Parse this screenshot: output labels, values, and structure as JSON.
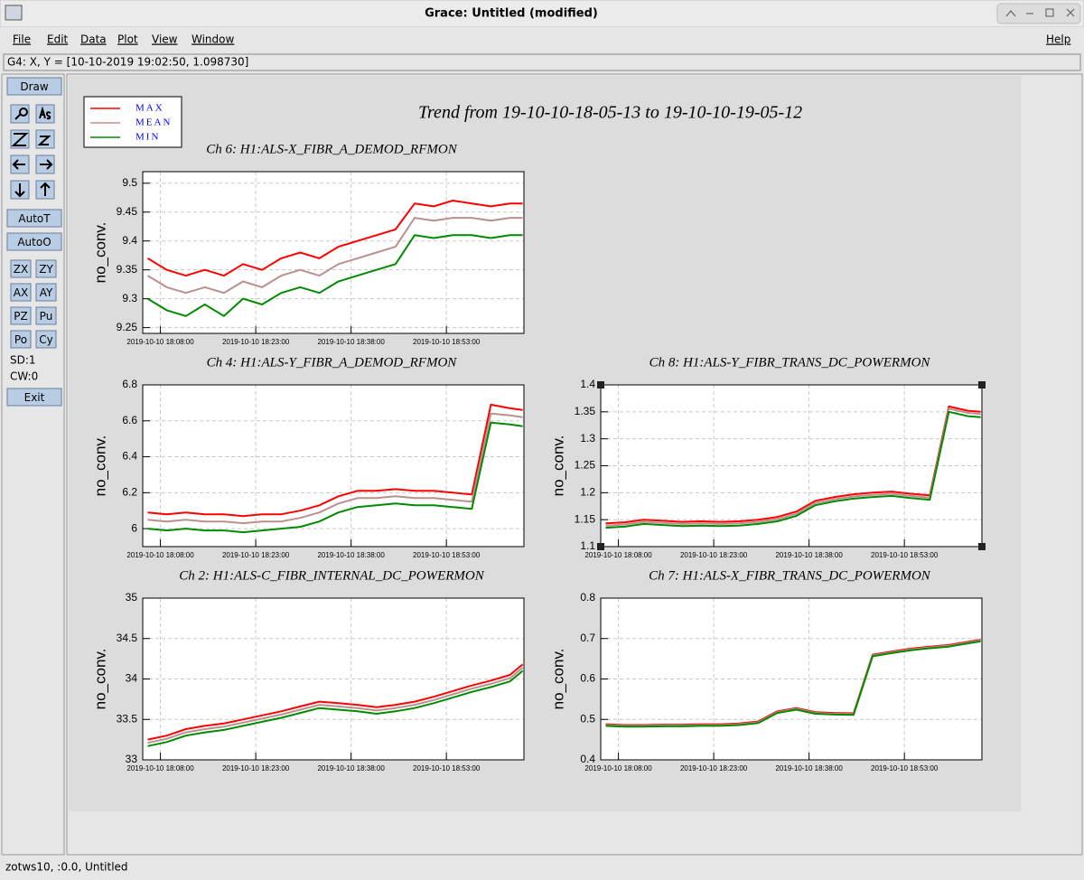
{
  "window": {
    "title": "Grace: Untitled (modified)"
  },
  "menu": [
    "File",
    "Edit",
    "Data",
    "Plot",
    "View",
    "Window"
  ],
  "help": "Help",
  "locator": "G4: X, Y = [10-10-2019 19:02:50, 1.098730]",
  "toolbar": {
    "draw": "Draw",
    "auto": [
      "AutoT",
      "AutoO"
    ],
    "grid": [
      "ZX",
      "ZY",
      "AX",
      "AY",
      "PZ",
      "Pu",
      "Po",
      "Cy"
    ],
    "info": [
      "SD:1",
      "CW:0"
    ],
    "exit": "Exit"
  },
  "status": "zotws10, :0.0, Untitled",
  "title": "Trend from 19-10-10-18-05-13 to 19-10-10-19-05-12",
  "legend": [
    {
      "name": "MAX",
      "color": "#ff0000"
    },
    {
      "name": "MEAN",
      "color": "#bc8f8f"
    },
    {
      "name": "MIN",
      "color": "#008b00"
    }
  ],
  "chart_data": [
    {
      "type": "line",
      "title": "Ch 6: H1:ALS-X_FIBR_A_DEMOD_RFMON",
      "ylabel": "no_conv.",
      "grid": true,
      "x": [
        "2019-10-10 18:06:00",
        "2019-10-10 18:09:00",
        "2019-10-10 18:12:00",
        "2019-10-10 18:15:00",
        "2019-10-10 18:18:00",
        "2019-10-10 18:21:00",
        "2019-10-10 18:24:00",
        "2019-10-10 18:27:00",
        "2019-10-10 18:30:00",
        "2019-10-10 18:33:00",
        "2019-10-10 18:36:00",
        "2019-10-10 18:39:00",
        "2019-10-10 18:42:00",
        "2019-10-10 18:45:00",
        "2019-10-10 18:48:00",
        "2019-10-10 18:51:00",
        "2019-10-10 18:54:00",
        "2019-10-10 18:57:00",
        "2019-10-10 19:00:00",
        "2019-10-10 19:03:00",
        "2019-10-10 19:05:00"
      ],
      "xlim": [
        "2019-10-10 18:05:13",
        "2019-10-10 19:05:12"
      ],
      "xticks": [
        "2019-10-10 18:08:00",
        "2019-10-10 18:23:00",
        "2019-10-10 18:38:00",
        "2019-10-10 18:53:00"
      ],
      "ylim": [
        9.24,
        9.52
      ],
      "yticks": [
        9.25,
        9.3,
        9.35,
        9.4,
        9.45,
        9.5
      ],
      "series": [
        {
          "values": [
            9.37,
            9.35,
            9.34,
            9.35,
            9.34,
            9.36,
            9.35,
            9.37,
            9.38,
            9.37,
            9.39,
            9.4,
            9.41,
            9.42,
            9.465,
            9.46,
            9.47,
            9.465,
            9.46,
            9.465,
            9.465
          ]
        },
        {
          "values": [
            9.34,
            9.32,
            9.31,
            9.32,
            9.31,
            9.33,
            9.32,
            9.34,
            9.35,
            9.34,
            9.36,
            9.37,
            9.38,
            9.39,
            9.44,
            9.435,
            9.44,
            9.44,
            9.435,
            9.44,
            9.44
          ]
        },
        {
          "values": [
            9.3,
            9.28,
            9.27,
            9.29,
            9.27,
            9.3,
            9.29,
            9.31,
            9.32,
            9.31,
            9.33,
            9.34,
            9.35,
            9.36,
            9.41,
            9.405,
            9.41,
            9.41,
            9.405,
            9.41,
            9.41
          ]
        }
      ]
    },
    {
      "type": "line",
      "title": "Ch 4: H1:ALS-Y_FIBR_A_DEMOD_RFMON",
      "ylabel": "no_conv.",
      "grid": true,
      "x": [
        "2019-10-10 18:06:00",
        "2019-10-10 18:09:00",
        "2019-10-10 18:12:00",
        "2019-10-10 18:15:00",
        "2019-10-10 18:18:00",
        "2019-10-10 18:21:00",
        "2019-10-10 18:24:00",
        "2019-10-10 18:27:00",
        "2019-10-10 18:30:00",
        "2019-10-10 18:33:00",
        "2019-10-10 18:36:00",
        "2019-10-10 18:39:00",
        "2019-10-10 18:42:00",
        "2019-10-10 18:45:00",
        "2019-10-10 18:48:00",
        "2019-10-10 18:51:00",
        "2019-10-10 18:54:00",
        "2019-10-10 18:57:00",
        "2019-10-10 19:00:00",
        "2019-10-10 19:03:00",
        "2019-10-10 19:05:00"
      ],
      "xlim": [
        "2019-10-10 18:05:13",
        "2019-10-10 19:05:12"
      ],
      "xticks": [
        "2019-10-10 18:08:00",
        "2019-10-10 18:23:00",
        "2019-10-10 18:38:00",
        "2019-10-10 18:53:00"
      ],
      "ylim": [
        5.9,
        6.8
      ],
      "yticks": [
        6,
        6.2,
        6.4,
        6.6,
        6.8
      ],
      "series": [
        {
          "values": [
            6.09,
            6.08,
            6.09,
            6.08,
            6.08,
            6.07,
            6.08,
            6.08,
            6.1,
            6.13,
            6.18,
            6.21,
            6.21,
            6.22,
            6.21,
            6.21,
            6.2,
            6.19,
            6.69,
            6.67,
            6.66
          ]
        },
        {
          "values": [
            6.05,
            6.04,
            6.05,
            6.04,
            6.04,
            6.03,
            6.04,
            6.04,
            6.06,
            6.09,
            6.14,
            6.17,
            6.17,
            6.18,
            6.17,
            6.17,
            6.16,
            6.15,
            6.64,
            6.63,
            6.62
          ]
        },
        {
          "values": [
            6.0,
            5.99,
            6.0,
            5.99,
            5.99,
            5.98,
            5.99,
            6.0,
            6.01,
            6.04,
            6.09,
            6.12,
            6.13,
            6.14,
            6.13,
            6.13,
            6.12,
            6.11,
            6.59,
            6.58,
            6.57
          ]
        }
      ]
    },
    {
      "type": "line",
      "title": "Ch 8: H1:ALS-Y_FIBR_TRANS_DC_POWERMON",
      "ylabel": "no_conv.",
      "grid": true,
      "x": [
        "2019-10-10 18:06:00",
        "2019-10-10 18:09:00",
        "2019-10-10 18:12:00",
        "2019-10-10 18:15:00",
        "2019-10-10 18:18:00",
        "2019-10-10 18:21:00",
        "2019-10-10 18:24:00",
        "2019-10-10 18:27:00",
        "2019-10-10 18:30:00",
        "2019-10-10 18:33:00",
        "2019-10-10 18:36:00",
        "2019-10-10 18:39:00",
        "2019-10-10 18:42:00",
        "2019-10-10 18:45:00",
        "2019-10-10 18:48:00",
        "2019-10-10 18:51:00",
        "2019-10-10 18:54:00",
        "2019-10-10 18:57:00",
        "2019-10-10 19:00:00",
        "2019-10-10 19:03:00",
        "2019-10-10 19:05:00"
      ],
      "xlim": [
        "2019-10-10 18:05:13",
        "2019-10-10 19:05:12"
      ],
      "xticks": [
        "2019-10-10 18:08:00",
        "2019-10-10 18:23:00",
        "2019-10-10 18:38:00",
        "2019-10-10 18:53:00"
      ],
      "ylim": [
        1.1,
        1.4
      ],
      "yticks": [
        1.1,
        1.15,
        1.2,
        1.25,
        1.3,
        1.35,
        1.4
      ],
      "series": [
        {
          "values": [
            1.143,
            1.145,
            1.15,
            1.148,
            1.146,
            1.147,
            1.146,
            1.147,
            1.15,
            1.155,
            1.165,
            1.185,
            1.192,
            1.197,
            1.2,
            1.202,
            1.198,
            1.195,
            1.36,
            1.352,
            1.35
          ]
        },
        {
          "values": [
            1.139,
            1.141,
            1.146,
            1.144,
            1.142,
            1.143,
            1.142,
            1.143,
            1.146,
            1.151,
            1.161,
            1.181,
            1.188,
            1.193,
            1.196,
            1.198,
            1.194,
            1.191,
            1.356,
            1.348,
            1.346
          ]
        },
        {
          "values": [
            1.135,
            1.137,
            1.142,
            1.14,
            1.138,
            1.139,
            1.138,
            1.139,
            1.142,
            1.147,
            1.157,
            1.177,
            1.184,
            1.189,
            1.192,
            1.194,
            1.19,
            1.187,
            1.35,
            1.342,
            1.34
          ]
        }
      ]
    },
    {
      "type": "line",
      "title": "Ch 2: H1:ALS-C_FIBR_INTERNAL_DC_POWERMON",
      "ylabel": "no_conv.",
      "grid": true,
      "x": [
        "2019-10-10 18:06:00",
        "2019-10-10 18:09:00",
        "2019-10-10 18:12:00",
        "2019-10-10 18:15:00",
        "2019-10-10 18:18:00",
        "2019-10-10 18:21:00",
        "2019-10-10 18:24:00",
        "2019-10-10 18:27:00",
        "2019-10-10 18:30:00",
        "2019-10-10 18:33:00",
        "2019-10-10 18:36:00",
        "2019-10-10 18:39:00",
        "2019-10-10 18:42:00",
        "2019-10-10 18:45:00",
        "2019-10-10 18:48:00",
        "2019-10-10 18:51:00",
        "2019-10-10 18:54:00",
        "2019-10-10 18:57:00",
        "2019-10-10 19:00:00",
        "2019-10-10 19:03:00",
        "2019-10-10 19:05:00"
      ],
      "xlim": [
        "2019-10-10 18:05:13",
        "2019-10-10 19:05:12"
      ],
      "xticks": [
        "2019-10-10 18:08:00",
        "2019-10-10 18:23:00",
        "2019-10-10 18:38:00",
        "2019-10-10 18:53:00"
      ],
      "ylim": [
        33,
        35
      ],
      "yticks": [
        33,
        33.5,
        34,
        34.5,
        35
      ],
      "series": [
        {
          "values": [
            33.25,
            33.3,
            33.38,
            33.42,
            33.45,
            33.5,
            33.55,
            33.6,
            33.66,
            33.72,
            33.7,
            33.68,
            33.65,
            33.68,
            33.72,
            33.78,
            33.85,
            33.92,
            33.98,
            34.05,
            34.18
          ]
        },
        {
          "values": [
            33.21,
            33.26,
            33.34,
            33.38,
            33.41,
            33.46,
            33.51,
            33.56,
            33.62,
            33.68,
            33.66,
            33.64,
            33.61,
            33.64,
            33.68,
            33.74,
            33.81,
            33.88,
            33.94,
            34.01,
            34.14
          ]
        },
        {
          "values": [
            33.17,
            33.22,
            33.3,
            33.34,
            33.37,
            33.42,
            33.47,
            33.52,
            33.58,
            33.64,
            33.62,
            33.6,
            33.57,
            33.6,
            33.64,
            33.7,
            33.77,
            33.84,
            33.9,
            33.97,
            34.1
          ]
        }
      ]
    },
    {
      "type": "line",
      "title": "Ch 7: H1:ALS-X_FIBR_TRANS_DC_POWERMON",
      "ylabel": "no_conv.",
      "grid": true,
      "x": [
        "2019-10-10 18:06:00",
        "2019-10-10 18:09:00",
        "2019-10-10 18:12:00",
        "2019-10-10 18:15:00",
        "2019-10-10 18:18:00",
        "2019-10-10 18:21:00",
        "2019-10-10 18:24:00",
        "2019-10-10 18:27:00",
        "2019-10-10 18:30:00",
        "2019-10-10 18:33:00",
        "2019-10-10 18:36:00",
        "2019-10-10 18:39:00",
        "2019-10-10 18:42:00",
        "2019-10-10 18:45:00",
        "2019-10-10 18:48:00",
        "2019-10-10 18:51:00",
        "2019-10-10 18:54:00",
        "2019-10-10 18:57:00",
        "2019-10-10 19:00:00",
        "2019-10-10 19:03:00",
        "2019-10-10 19:05:00"
      ],
      "xlim": [
        "2019-10-10 18:05:13",
        "2019-10-10 19:05:12"
      ],
      "xticks": [
        "2019-10-10 18:08:00",
        "2019-10-10 18:23:00",
        "2019-10-10 18:38:00",
        "2019-10-10 18:53:00"
      ],
      "ylim": [
        0.4,
        0.8
      ],
      "yticks": [
        0.4,
        0.5,
        0.6,
        0.7,
        0.8
      ],
      "series": [
        {
          "values": [
            0.488,
            0.486,
            0.486,
            0.487,
            0.487,
            0.488,
            0.488,
            0.49,
            0.495,
            0.52,
            0.528,
            0.518,
            0.516,
            0.515,
            0.66,
            0.668,
            0.675,
            0.68,
            0.684,
            0.692,
            0.697
          ]
        },
        {
          "values": [
            0.486,
            0.484,
            0.484,
            0.485,
            0.485,
            0.486,
            0.486,
            0.488,
            0.493,
            0.518,
            0.526,
            0.516,
            0.514,
            0.513,
            0.658,
            0.666,
            0.673,
            0.678,
            0.682,
            0.69,
            0.695
          ]
        },
        {
          "values": [
            0.484,
            0.482,
            0.482,
            0.483,
            0.483,
            0.484,
            0.484,
            0.486,
            0.491,
            0.516,
            0.524,
            0.514,
            0.512,
            0.511,
            0.656,
            0.664,
            0.671,
            0.676,
            0.68,
            0.688,
            0.693
          ]
        }
      ]
    }
  ]
}
